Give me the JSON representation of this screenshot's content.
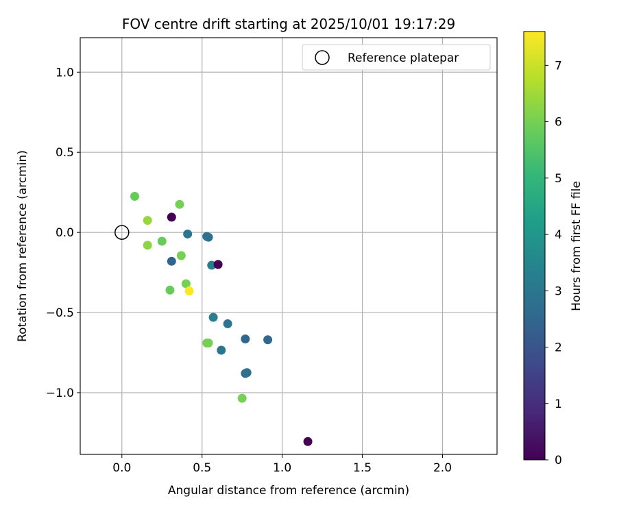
{
  "chart_data": {
    "type": "scatter",
    "title": "FOV centre drift starting at 2025/10/01 19:17:29",
    "xlabel": "Angular distance from reference (arcmin)",
    "ylabel": "Rotation from reference (arcmin)",
    "xlim": [
      -0.26,
      2.34
    ],
    "ylim": [
      -1.385,
      1.215
    ],
    "xticks": [
      0.0,
      0.5,
      1.0,
      1.5,
      2.0
    ],
    "xtick_labels": [
      "0.0",
      "0.5",
      "1.0",
      "1.5",
      "2.0"
    ],
    "yticks": [
      1.0,
      0.5,
      0.0,
      -0.5,
      -1.0
    ],
    "ytick_labels": [
      "1.0",
      "0.5",
      "0.0",
      "−0.5",
      "−1.0"
    ],
    "grid": true,
    "legend": {
      "position": "top-right",
      "entries": [
        "Reference platepar"
      ]
    },
    "reference_point": {
      "x": 0.0,
      "y": 0.0,
      "label": "Reference platepar"
    },
    "colorbar": {
      "label": "Hours from first FF file",
      "range": [
        0,
        7.6
      ],
      "ticks": [
        0,
        1,
        2,
        3,
        4,
        5,
        6,
        7
      ],
      "tick_labels": [
        "0",
        "1",
        "2",
        "3",
        "4",
        "5",
        "6",
        "7"
      ],
      "colormap": "viridis",
      "colors": [
        "#440154",
        "#482878",
        "#3e4989",
        "#31688e",
        "#26828e",
        "#1f9e89",
        "#35b779",
        "#6ece58",
        "#b5de2b",
        "#fde725"
      ]
    },
    "points": [
      {
        "x": 0.08,
        "y": 0.225,
        "hours": 5.8
      },
      {
        "x": 0.16,
        "y": 0.075,
        "hours": 6.4
      },
      {
        "x": 0.16,
        "y": -0.08,
        "hours": 6.3
      },
      {
        "x": 0.25,
        "y": -0.055,
        "hours": 5.8
      },
      {
        "x": 0.31,
        "y": 0.095,
        "hours": 0.0
      },
      {
        "x": 0.31,
        "y": -0.18,
        "hours": 2.4
      },
      {
        "x": 0.36,
        "y": 0.175,
        "hours": 6.0
      },
      {
        "x": 0.37,
        "y": -0.145,
        "hours": 6.0
      },
      {
        "x": 0.4,
        "y": -0.32,
        "hours": 6.0
      },
      {
        "x": 0.3,
        "y": -0.36,
        "hours": 5.8
      },
      {
        "x": 0.42,
        "y": -0.365,
        "hours": 7.6
      },
      {
        "x": 0.41,
        "y": -0.01,
        "hours": 3.0
      },
      {
        "x": 0.53,
        "y": -0.025,
        "hours": 2.9
      },
      {
        "x": 0.54,
        "y": -0.03,
        "hours": 2.8
      },
      {
        "x": 0.56,
        "y": -0.205,
        "hours": 3.2
      },
      {
        "x": 0.6,
        "y": -0.2,
        "hours": 0.0
      },
      {
        "x": 0.57,
        "y": -0.53,
        "hours": 3.2
      },
      {
        "x": 0.66,
        "y": -0.57,
        "hours": 3.0
      },
      {
        "x": 0.53,
        "y": -0.69,
        "hours": 6.0
      },
      {
        "x": 0.54,
        "y": -0.69,
        "hours": 6.0
      },
      {
        "x": 0.62,
        "y": -0.735,
        "hours": 3.0
      },
      {
        "x": 0.77,
        "y": -0.665,
        "hours": 2.5
      },
      {
        "x": 0.91,
        "y": -0.67,
        "hours": 2.5
      },
      {
        "x": 0.77,
        "y": -0.88,
        "hours": 2.7
      },
      {
        "x": 0.78,
        "y": -0.875,
        "hours": 2.8
      },
      {
        "x": 0.75,
        "y": -1.035,
        "hours": 6.0
      },
      {
        "x": 1.16,
        "y": -1.305,
        "hours": 0.0
      }
    ]
  }
}
